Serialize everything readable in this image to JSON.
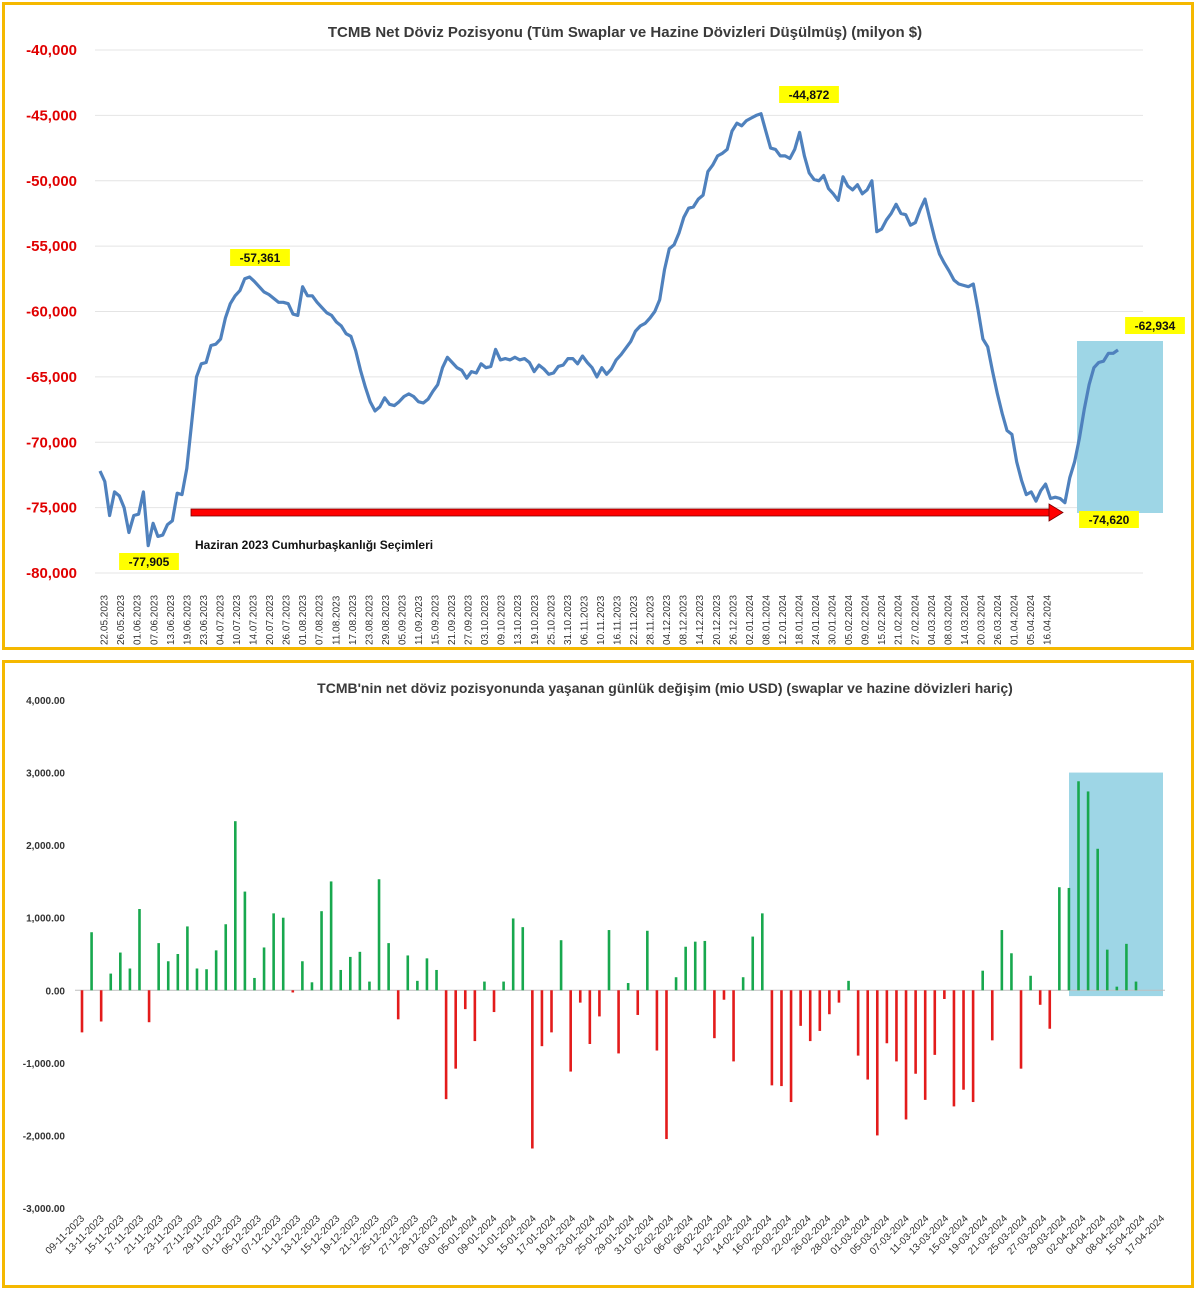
{
  "chart_data": [
    {
      "type": "line",
      "title": "TCMB Net Döviz Pozisyonu (Tüm Swaplar ve Hazine Dövizleri Düşülmüş) (milyon $)",
      "ylim": [
        -80000,
        -40000
      ],
      "yticks": [
        -40000,
        -45000,
        -50000,
        -55000,
        -60000,
        -65000,
        -70000,
        -75000,
        -80000
      ],
      "ytick_labels": [
        "-40,000",
        "-45,000",
        "-50,000",
        "-55,000",
        "-60,000",
        "-65,000",
        "-70,000",
        "-75,000",
        "-80,000"
      ],
      "x_tick_labels": [
        "22.05.2023",
        "26.05.2023",
        "01.06.2023",
        "07.06.2023",
        "13.06.2023",
        "19.06.2023",
        "23.06.2023",
        "04.07.2023",
        "10.07.2023",
        "14.07.2023",
        "20.07.2023",
        "26.07.2023",
        "01.08.2023",
        "07.08.2023",
        "11.08.2023",
        "17.08.2023",
        "23.08.2023",
        "29.08.2023",
        "05.09.2023",
        "11.09.2023",
        "15.09.2023",
        "21.09.2023",
        "27.09.2023",
        "03.10.2023",
        "09.10.2023",
        "13.10.2023",
        "19.10.2023",
        "25.10.2023",
        "31.10.2023",
        "06.11.2023",
        "10.11.2023",
        "16.11.2023",
        "22.11.2023",
        "28.11.2023",
        "04.12.2023",
        "08.12.2023",
        "14.12.2023",
        "20.12.2023",
        "26.12.2023",
        "02.01.2024",
        "08.01.2024",
        "12.01.2024",
        "18.01.2024",
        "24.01.2024",
        "30.01.2024",
        "05.02.2024",
        "09.02.2024",
        "15.02.2024",
        "21.02.2024",
        "27.02.2024",
        "04.03.2024",
        "08.03.2024",
        "14.03.2024",
        "20.03.2024",
        "26.03.2024",
        "01.04.2024",
        "05.04.2024",
        "16.04.2024"
      ],
      "series": [
        {
          "values": [
            -72200,
            -73000,
            -75600,
            -73800,
            -74100,
            -75000,
            -76900,
            -75600,
            -75500,
            -73800,
            -77905,
            -76200,
            -77200,
            -77100,
            -76300,
            -76000,
            -73900,
            -74000,
            -72000,
            -68500,
            -65000,
            -64000,
            -63900,
            -62600,
            -62500,
            -62100,
            -60500,
            -59400,
            -58800,
            -58400,
            -57500,
            -57361,
            -57700,
            -58100,
            -58500,
            -58700,
            -59000,
            -59300,
            -59300,
            -59400,
            -60200,
            -60300,
            -58100,
            -58800,
            -58800,
            -59300,
            -59700,
            -60100,
            -60300,
            -60800,
            -61100,
            -61700,
            -61900,
            -63000,
            -64500,
            -65800,
            -66900,
            -67600,
            -67300,
            -66600,
            -67100,
            -67200,
            -66900,
            -66500,
            -66300,
            -66500,
            -66900,
            -67000,
            -66700,
            -66100,
            -65600,
            -64300,
            -63500,
            -63900,
            -64300,
            -64500,
            -65100,
            -64600,
            -64700,
            -64000,
            -64300,
            -64200,
            -62900,
            -63700,
            -63600,
            -63700,
            -63500,
            -63700,
            -63600,
            -63900,
            -64600,
            -64100,
            -64400,
            -64800,
            -64700,
            -64200,
            -64100,
            -63600,
            -63600,
            -64000,
            -63400,
            -63900,
            -64300,
            -65000,
            -64300,
            -64800,
            -64400,
            -63700,
            -63300,
            -62800,
            -62300,
            -61500,
            -61100,
            -60900,
            -60500,
            -60000,
            -59100,
            -56800,
            -55200,
            -54900,
            -54000,
            -52800,
            -52100,
            -52000,
            -51400,
            -51100,
            -49300,
            -48800,
            -48100,
            -47900,
            -47600,
            -46200,
            -45600,
            -45800,
            -45400,
            -45200,
            -45000,
            -44872,
            -46200,
            -47500,
            -47600,
            -48100,
            -48100,
            -48300,
            -47600,
            -46300,
            -48100,
            -49400,
            -49900,
            -50000,
            -49600,
            -50600,
            -51000,
            -51500,
            -49700,
            -50400,
            -50700,
            -50300,
            -51000,
            -50700,
            -50000,
            -53900,
            -53700,
            -53000,
            -52500,
            -51800,
            -52500,
            -52600,
            -53400,
            -53200,
            -52200,
            -51400,
            -52900,
            -54400,
            -55600,
            -56300,
            -56900,
            -57600,
            -57900,
            -58000,
            -58100,
            -57900,
            -59900,
            -62100,
            -62700,
            -64600,
            -66300,
            -67800,
            -69100,
            -69400,
            -71500,
            -72900,
            -74000,
            -73800,
            -74500,
            -73700,
            -73200,
            -74300,
            -74200,
            -74300,
            -74620,
            -72700,
            -71500,
            -69700,
            -67500,
            -65600,
            -64300,
            -63900,
            -63800,
            -63200,
            -63200,
            -62934
          ]
        }
      ],
      "annotations": [
        "-57,361",
        "-44,872",
        "-77,905",
        "-74,620",
        "-62,934"
      ],
      "arrow_label": "Haziran 2023 Cumhurbaşkanlığı Seçimleri",
      "highlight_box_color": "#9ed6e6",
      "line_color": "#4f81bd",
      "annotation_bg": "#ffff00",
      "arrow_color": "#ff0000"
    },
    {
      "type": "bar",
      "title": "TCMB'nin net döviz pozisyonunda yaşanan günlük değişim (mio USD) (swaplar ve hazine dövizleri hariç)",
      "ylim": [
        -3000,
        4000
      ],
      "yticks": [
        4000,
        3000,
        2000,
        1000,
        0,
        -1000,
        -2000,
        -3000
      ],
      "ytick_labels": [
        "4,000.00",
        "3,000.00",
        "2,000.00",
        "1,000.00",
        "0.00",
        "-1,000.00",
        "-2,000.00",
        "-3,000.00"
      ],
      "x_tick_labels": [
        "09-11-2023",
        "13-11-2023",
        "15-11-2023",
        "17-11-2023",
        "21-11-2023",
        "23-11-2023",
        "27-11-2023",
        "29-11-2023",
        "01-12-2023",
        "05-12-2023",
        "07-12-2023",
        "11-12-2023",
        "13-12-2023",
        "15-12-2023",
        "19-12-2023",
        "21-12-2023",
        "25-12-2023",
        "27-12-2023",
        "29-12-2023",
        "03-01-2024",
        "05-01-2024",
        "09-01-2024",
        "11-01-2024",
        "15-01-2024",
        "17-01-2024",
        "19-01-2024",
        "23-01-2024",
        "25-01-2024",
        "29-01-2024",
        "31-01-2024",
        "02-02-2024",
        "06-02-2024",
        "08-02-2024",
        "12-02-2024",
        "14-02-2024",
        "16-02-2024",
        "20-02-2024",
        "22-02-2024",
        "26-02-2024",
        "28-02-2024",
        "01-03-2024",
        "05-03-2024",
        "07-03-2024",
        "11-03-2024",
        "13-03-2024",
        "15-03-2024",
        "19-03-2024",
        "21-03-2024",
        "25-03-2024",
        "27-03-2024",
        "29-03-2024",
        "02-04-2024",
        "04-04-2024",
        "08-04-2024",
        "15-04-2024",
        "17-04-2024"
      ],
      "values": [
        -580,
        800,
        -430,
        230,
        520,
        300,
        1120,
        -440,
        650,
        400,
        500,
        880,
        300,
        290,
        550,
        910,
        2330,
        1360,
        170,
        590,
        1060,
        1000,
        -30,
        400,
        110,
        1090,
        1500,
        280,
        460,
        530,
        120,
        1530,
        650,
        -400,
        480,
        130,
        440,
        280,
        -1500,
        -1080,
        -260,
        -700,
        120,
        -300,
        120,
        990,
        870,
        -2180,
        -770,
        -580,
        690,
        -1120,
        -170,
        -740,
        -360,
        830,
        -870,
        100,
        -340,
        820,
        -830,
        -2050,
        180,
        600,
        670,
        680,
        -660,
        -130,
        -980,
        180,
        740,
        1060,
        -1310,
        -1320,
        -1540,
        -490,
        -700,
        -560,
        -330,
        -170,
        130,
        -900,
        -1230,
        -2000,
        -730,
        -980,
        -1780,
        -1150,
        -1510,
        -890,
        -120,
        -1600,
        -1370,
        -1540,
        270,
        -690,
        830,
        510,
        -1080,
        200,
        -200,
        -530,
        1420,
        1410,
        2880,
        2740,
        1950,
        560,
        50,
        640,
        120
      ],
      "positive_color": "#18a84e",
      "negative_color": "#e31b1b",
      "highlight_box_color": "#9ed6e6"
    }
  ]
}
